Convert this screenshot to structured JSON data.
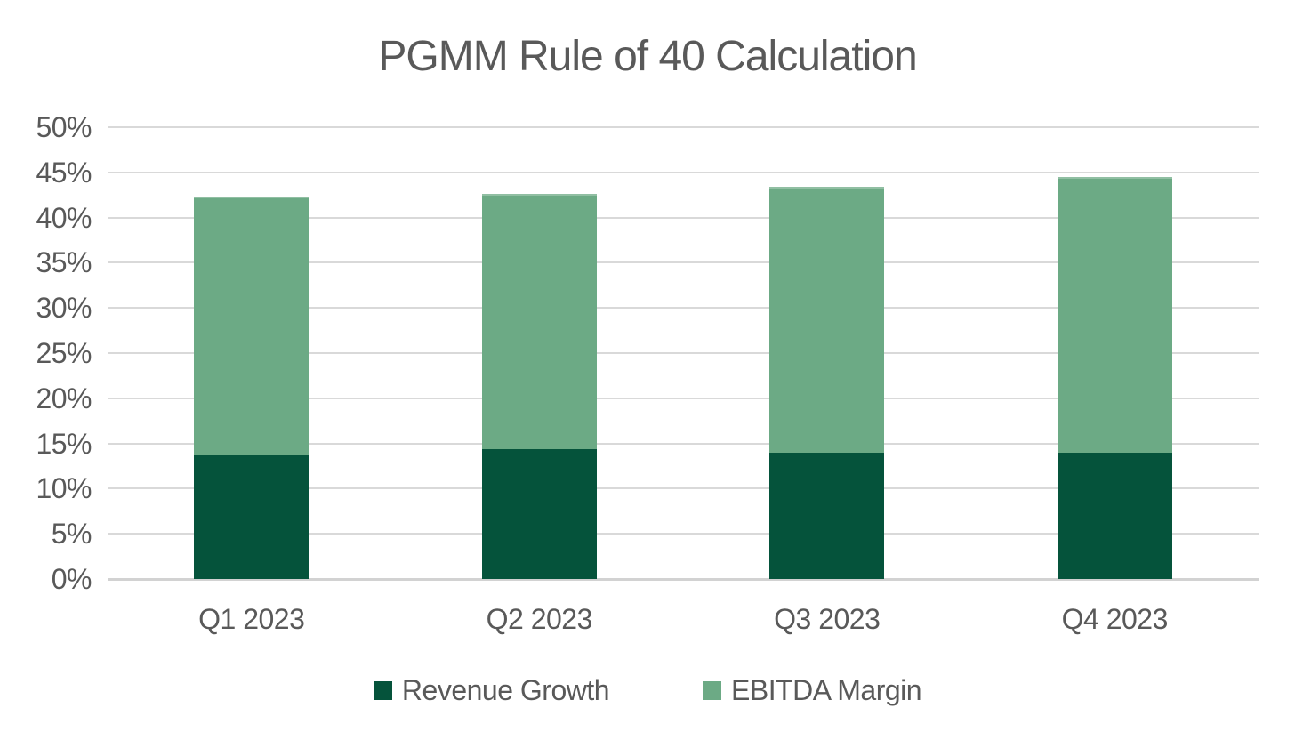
{
  "chart_data": {
    "type": "bar",
    "stacked": true,
    "title": "PGMM Rule of 40 Calculation",
    "categories": [
      "Q1 2023",
      "Q2 2023",
      "Q3 2023",
      "Q4 2023"
    ],
    "series": [
      {
        "name": "Revenue Growth",
        "color": "#05533B",
        "values": [
          13.7,
          14.4,
          14.0,
          14.0
        ]
      },
      {
        "name": "EBITDA Margin",
        "color": "#6CAA85",
        "values": [
          28.6,
          28.2,
          29.4,
          30.5
        ]
      }
    ],
    "stack_totals": [
      42.3,
      42.6,
      43.4,
      44.5
    ],
    "xlabel": "",
    "ylabel": "",
    "ylim": [
      0,
      50
    ],
    "ytick_step": 5,
    "ytick_labels": [
      "0%",
      "5%",
      "10%",
      "15%",
      "20%",
      "25%",
      "30%",
      "35%",
      "40%",
      "45%",
      "50%"
    ],
    "grid": true,
    "legend_position": "bottom"
  },
  "colors": {
    "background": "#FFFFFF",
    "text": "#595959",
    "gridline": "#D9D9D9",
    "revenue_growth": "#05533B",
    "ebitda_margin": "#6CAA85"
  }
}
